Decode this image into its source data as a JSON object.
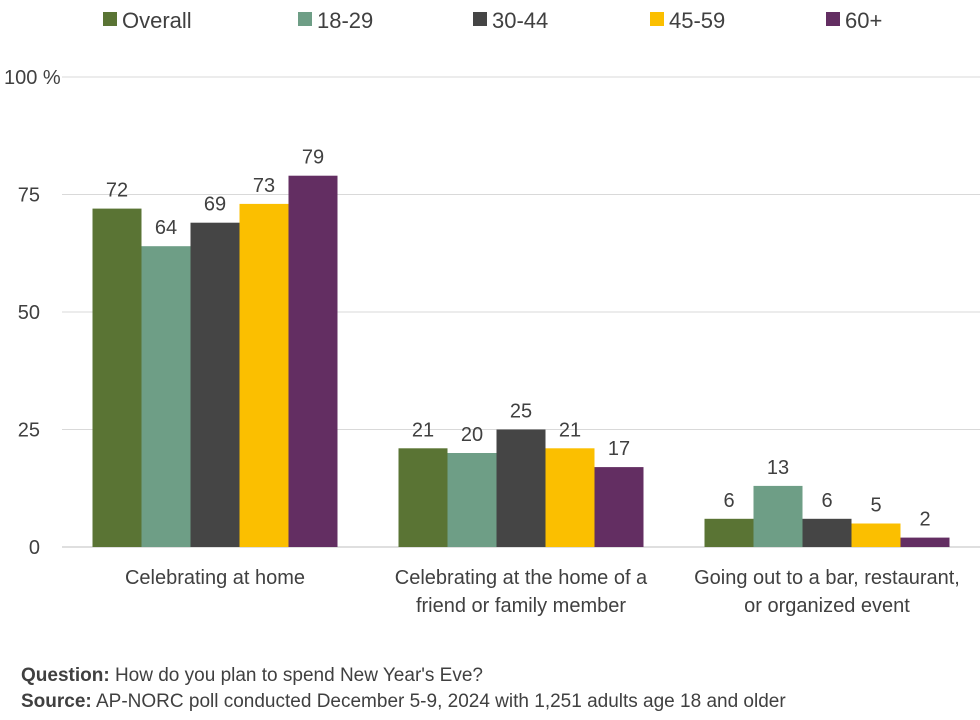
{
  "colors": {
    "overall": "#5a7434",
    "age_18_29": "#6e9e86",
    "age_30_44": "#454545",
    "age_45_59": "#fbbf00",
    "age_60_plus": "#632e62",
    "grid": "#d9d9d9",
    "axis": "#bfbfbf"
  },
  "chart_data": {
    "type": "bar",
    "categories": [
      [
        "Celebrating at home"
      ],
      [
        "Celebrating at the home of a",
        "friend or family member"
      ],
      [
        "Going out to a bar, restaurant,",
        "or organized event"
      ]
    ],
    "series": [
      {
        "name": "Overall",
        "color_key": "overall",
        "values": [
          72,
          21,
          6
        ]
      },
      {
        "name": "18-29",
        "color_key": "age_18_29",
        "values": [
          64,
          20,
          13
        ]
      },
      {
        "name": "30-44",
        "color_key": "age_30_44",
        "values": [
          69,
          25,
          6
        ]
      },
      {
        "name": "45-59",
        "color_key": "age_45_59",
        "values": [
          73,
          21,
          5
        ]
      },
      {
        "name": "60+",
        "color_key": "age_60_plus",
        "values": [
          79,
          17,
          2
        ]
      }
    ],
    "yticks": [
      "0",
      "25",
      "50",
      "75",
      "100 %"
    ],
    "ylim": [
      0,
      100
    ],
    "grid": true,
    "legend_position": "top"
  },
  "footer": {
    "question_label": "Question:",
    "question_text": "How do you plan to spend New Year's Eve?",
    "source_label": "Source:",
    "source_text": "AP-NORC poll conducted December 5-9, 2024 with 1,251 adults age 18 and older"
  }
}
